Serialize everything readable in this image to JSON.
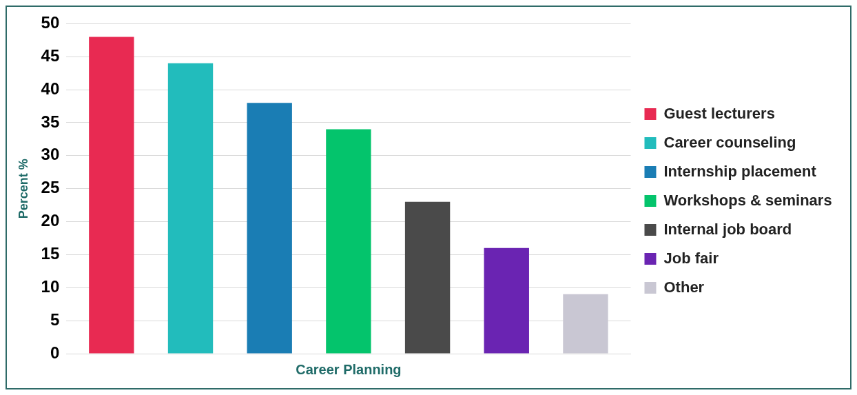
{
  "chart_data": {
    "type": "bar",
    "xlabel": "Career Planning",
    "ylabel": "Percent %",
    "categories": [
      null
    ],
    "series": [
      {
        "name": "Guest lecturers",
        "color": "#e82a52",
        "values": [
          48
        ]
      },
      {
        "name": "Career counseling",
        "color": "#22bcbc",
        "values": [
          44
        ]
      },
      {
        "name": "Internship placement",
        "color": "#1a7db4",
        "values": [
          38
        ]
      },
      {
        "name": "Workshops & seminars",
        "color": "#04c46c",
        "values": [
          34
        ]
      },
      {
        "name": "Internal job board",
        "color": "#4a4a4a",
        "values": [
          23
        ]
      },
      {
        "name": "Job fair",
        "color": "#6a24b2",
        "values": [
          16
        ]
      },
      {
        "name": "Other",
        "color": "#c9c7d3",
        "values": [
          9
        ]
      }
    ],
    "ylim": [
      0,
      50
    ],
    "yticks": [
      0,
      5,
      10,
      15,
      20,
      25,
      30,
      35,
      40,
      45,
      50
    ],
    "grid": "y",
    "legend": "right",
    "tick_labels": "y"
  }
}
